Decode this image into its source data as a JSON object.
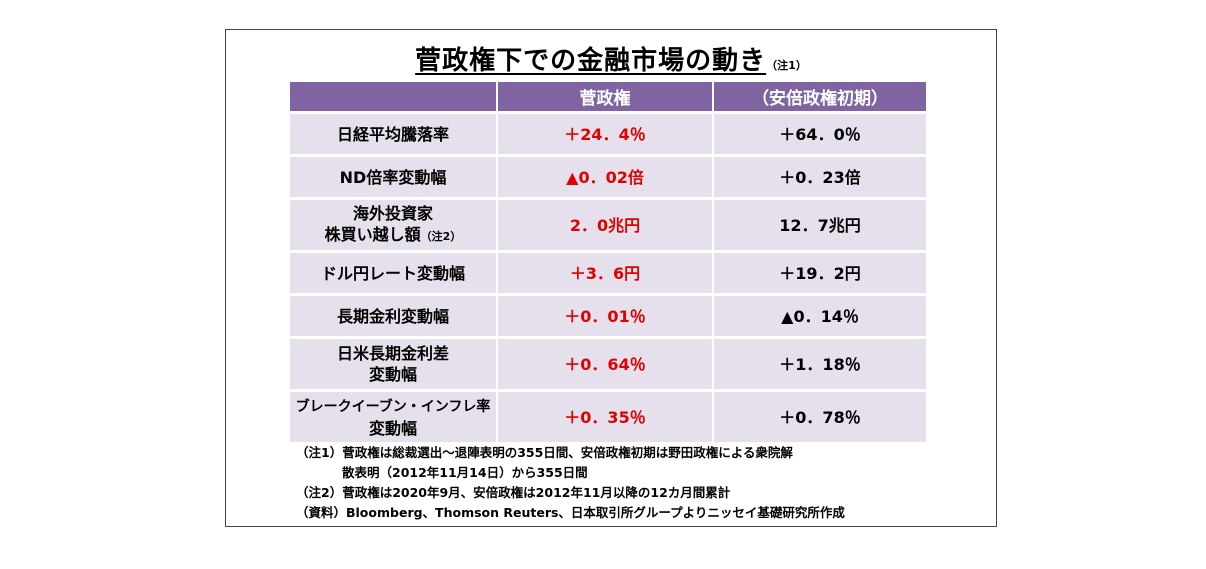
{
  "title": {
    "main": "菅政権下での金融市場の動き",
    "note": "（注1）"
  },
  "header": {
    "col0": "",
    "col1": "菅政権",
    "col2": "（安倍政権初期）"
  },
  "rows": [
    {
      "label": "日経平均騰落率",
      "label_note": "",
      "label2": "",
      "suga": "＋24．4％",
      "abe": "＋64．0％"
    },
    {
      "label": "ND倍率変動幅",
      "label_note": "",
      "label2": "",
      "suga": "▲0．02倍",
      "abe": "＋0．23倍"
    },
    {
      "label": "海外投資家",
      "label2": "株買い越し額",
      "label_note": "（注2）",
      "suga": "2．0兆円",
      "abe": "12．7兆円"
    },
    {
      "label": "ドル円レート変動幅",
      "label_note": "",
      "label2": "",
      "suga": "＋3．6円",
      "abe": "＋19．2円"
    },
    {
      "label": "長期金利変動幅",
      "label_note": "",
      "label2": "",
      "suga": "＋0．01％",
      "abe": "▲0．14％"
    },
    {
      "label": "日米長期金利差",
      "label2": "変動幅",
      "label_note": "",
      "suga": "＋0．64％",
      "abe": "＋1．18％"
    },
    {
      "label": "ブレークイーブン・インフレ率",
      "label2": "変動幅",
      "label_note": "",
      "suga": "＋0．35％",
      "abe": "＋0．78％"
    }
  ],
  "notes": {
    "note1_line1": "（注1）菅政権は総裁選出～退陣表明の355日間、安倍政権初期は野田政権による衆院解",
    "note1_line2": "散表明（2012年11月14日）から355日間",
    "note2": "（注2）菅政権は2020年9月、安倍政権は2012年11月以降の12カ月間累計",
    "source": "（資料）Bloomberg、Thomson Reuters、日本取引所グループよりニッセイ基礎研究所作成"
  },
  "colors": {
    "header_bg": "#8064a2",
    "cell_bg": "#e6e0ec",
    "suga_text": "#e00000"
  }
}
